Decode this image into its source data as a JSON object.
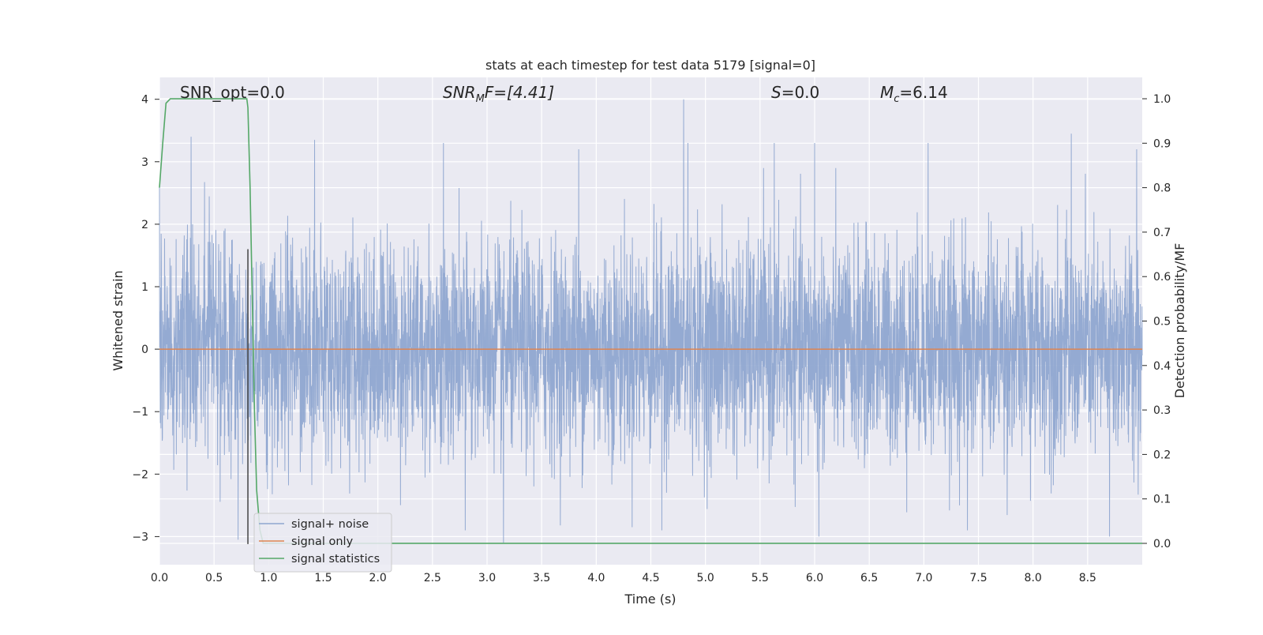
{
  "chart_data": {
    "type": "line",
    "title": "stats at each timestep for test data 5179 [signal=0]",
    "xlabel": "Time (s)",
    "ylabel_left": "Whitened strain",
    "ylabel_right": "Detection probability/MF",
    "xlim": [
      0.0,
      9.0
    ],
    "ylim_left": [
      -3.45,
      4.35
    ],
    "ylim_right": [
      -0.048,
      1.048
    ],
    "xticks": [
      "0.0",
      "0.5",
      "1.0",
      "1.5",
      "2.0",
      "2.5",
      "3.0",
      "3.5",
      "4.0",
      "4.5",
      "5.0",
      "5.5",
      "6.0",
      "6.5",
      "7.0",
      "7.5",
      "8.0",
      "8.5"
    ],
    "yticks_left": [
      "4",
      "3",
      "2",
      "1",
      "0",
      "−1",
      "−2",
      "−3"
    ],
    "yticks_right": [
      "1.0",
      "0.9",
      "0.8",
      "0.7",
      "0.6",
      "0.5",
      "0.4",
      "0.3",
      "0.2",
      "0.1",
      "0.0"
    ],
    "grid": true,
    "legend_position": "lower-left",
    "annotations": {
      "snr_opt": "SNR_opt=0.0",
      "snr_mf_base": "SNR",
      "snr_mf_sub": "M",
      "snr_mf_rest": "F=[4.41]",
      "s_italic": "S",
      "s_rest": "=0.0",
      "mc_italic": "M",
      "mc_sub": "c",
      "mc_rest": "=6.14"
    },
    "vline_x": 0.81,
    "series": [
      {
        "name": "signal+ noise",
        "color": "#8fa6d0",
        "description_axis": "left",
        "noise_std": 0.85,
        "peaks": [
          {
            "x": 0.0,
            "y": 2.6
          },
          {
            "x": 0.29,
            "y": 3.4
          },
          {
            "x": 1.42,
            "y": 3.35
          },
          {
            "x": 2.6,
            "y": 3.3
          },
          {
            "x": 3.84,
            "y": 3.2
          },
          {
            "x": 4.8,
            "y": 4.0
          },
          {
            "x": 4.84,
            "y": 3.3
          },
          {
            "x": 5.63,
            "y": 3.3
          },
          {
            "x": 6.0,
            "y": 3.3
          },
          {
            "x": 7.04,
            "y": 3.3
          },
          {
            "x": 8.35,
            "y": 3.45
          },
          {
            "x": 8.95,
            "y": 3.2
          },
          {
            "x": 3.15,
            "y": -3.1
          },
          {
            "x": 6.04,
            "y": -3.0
          },
          {
            "x": 4.6,
            "y": -2.9
          },
          {
            "x": 8.7,
            "y": -3.0
          },
          {
            "x": 0.72,
            "y": -3.05
          },
          {
            "x": 2.8,
            "y": -2.9
          },
          {
            "x": 7.4,
            "y": -2.9
          }
        ]
      },
      {
        "name": "signal only",
        "color": "#dd8452",
        "axis": "left",
        "x": [
          0.0,
          9.0
        ],
        "y": [
          0.0,
          0.0
        ]
      },
      {
        "name": "signal statistics",
        "color": "#55a868",
        "axis": "right",
        "x": [
          0.0,
          0.03,
          0.06,
          0.1,
          0.15,
          0.3,
          0.5,
          0.7,
          0.8,
          0.81,
          0.83,
          0.85,
          0.87,
          0.89,
          0.92,
          0.95,
          1.0,
          2.0,
          3.0,
          4.0,
          5.0,
          6.0,
          7.0,
          8.0,
          9.0
        ],
        "y": [
          0.8,
          0.9,
          0.99,
          1.0,
          1.0,
          1.0,
          1.0,
          1.0,
          1.0,
          0.98,
          0.8,
          0.55,
          0.3,
          0.12,
          0.03,
          0.0,
          0.0,
          0.0,
          0.0,
          0.0,
          0.0,
          0.0,
          0.0,
          0.0,
          0.0
        ]
      }
    ]
  },
  "colors": {
    "plot_bg": "#eaeaf2",
    "grid": "#ffffff",
    "text": "#262626",
    "vline": "#444444"
  }
}
